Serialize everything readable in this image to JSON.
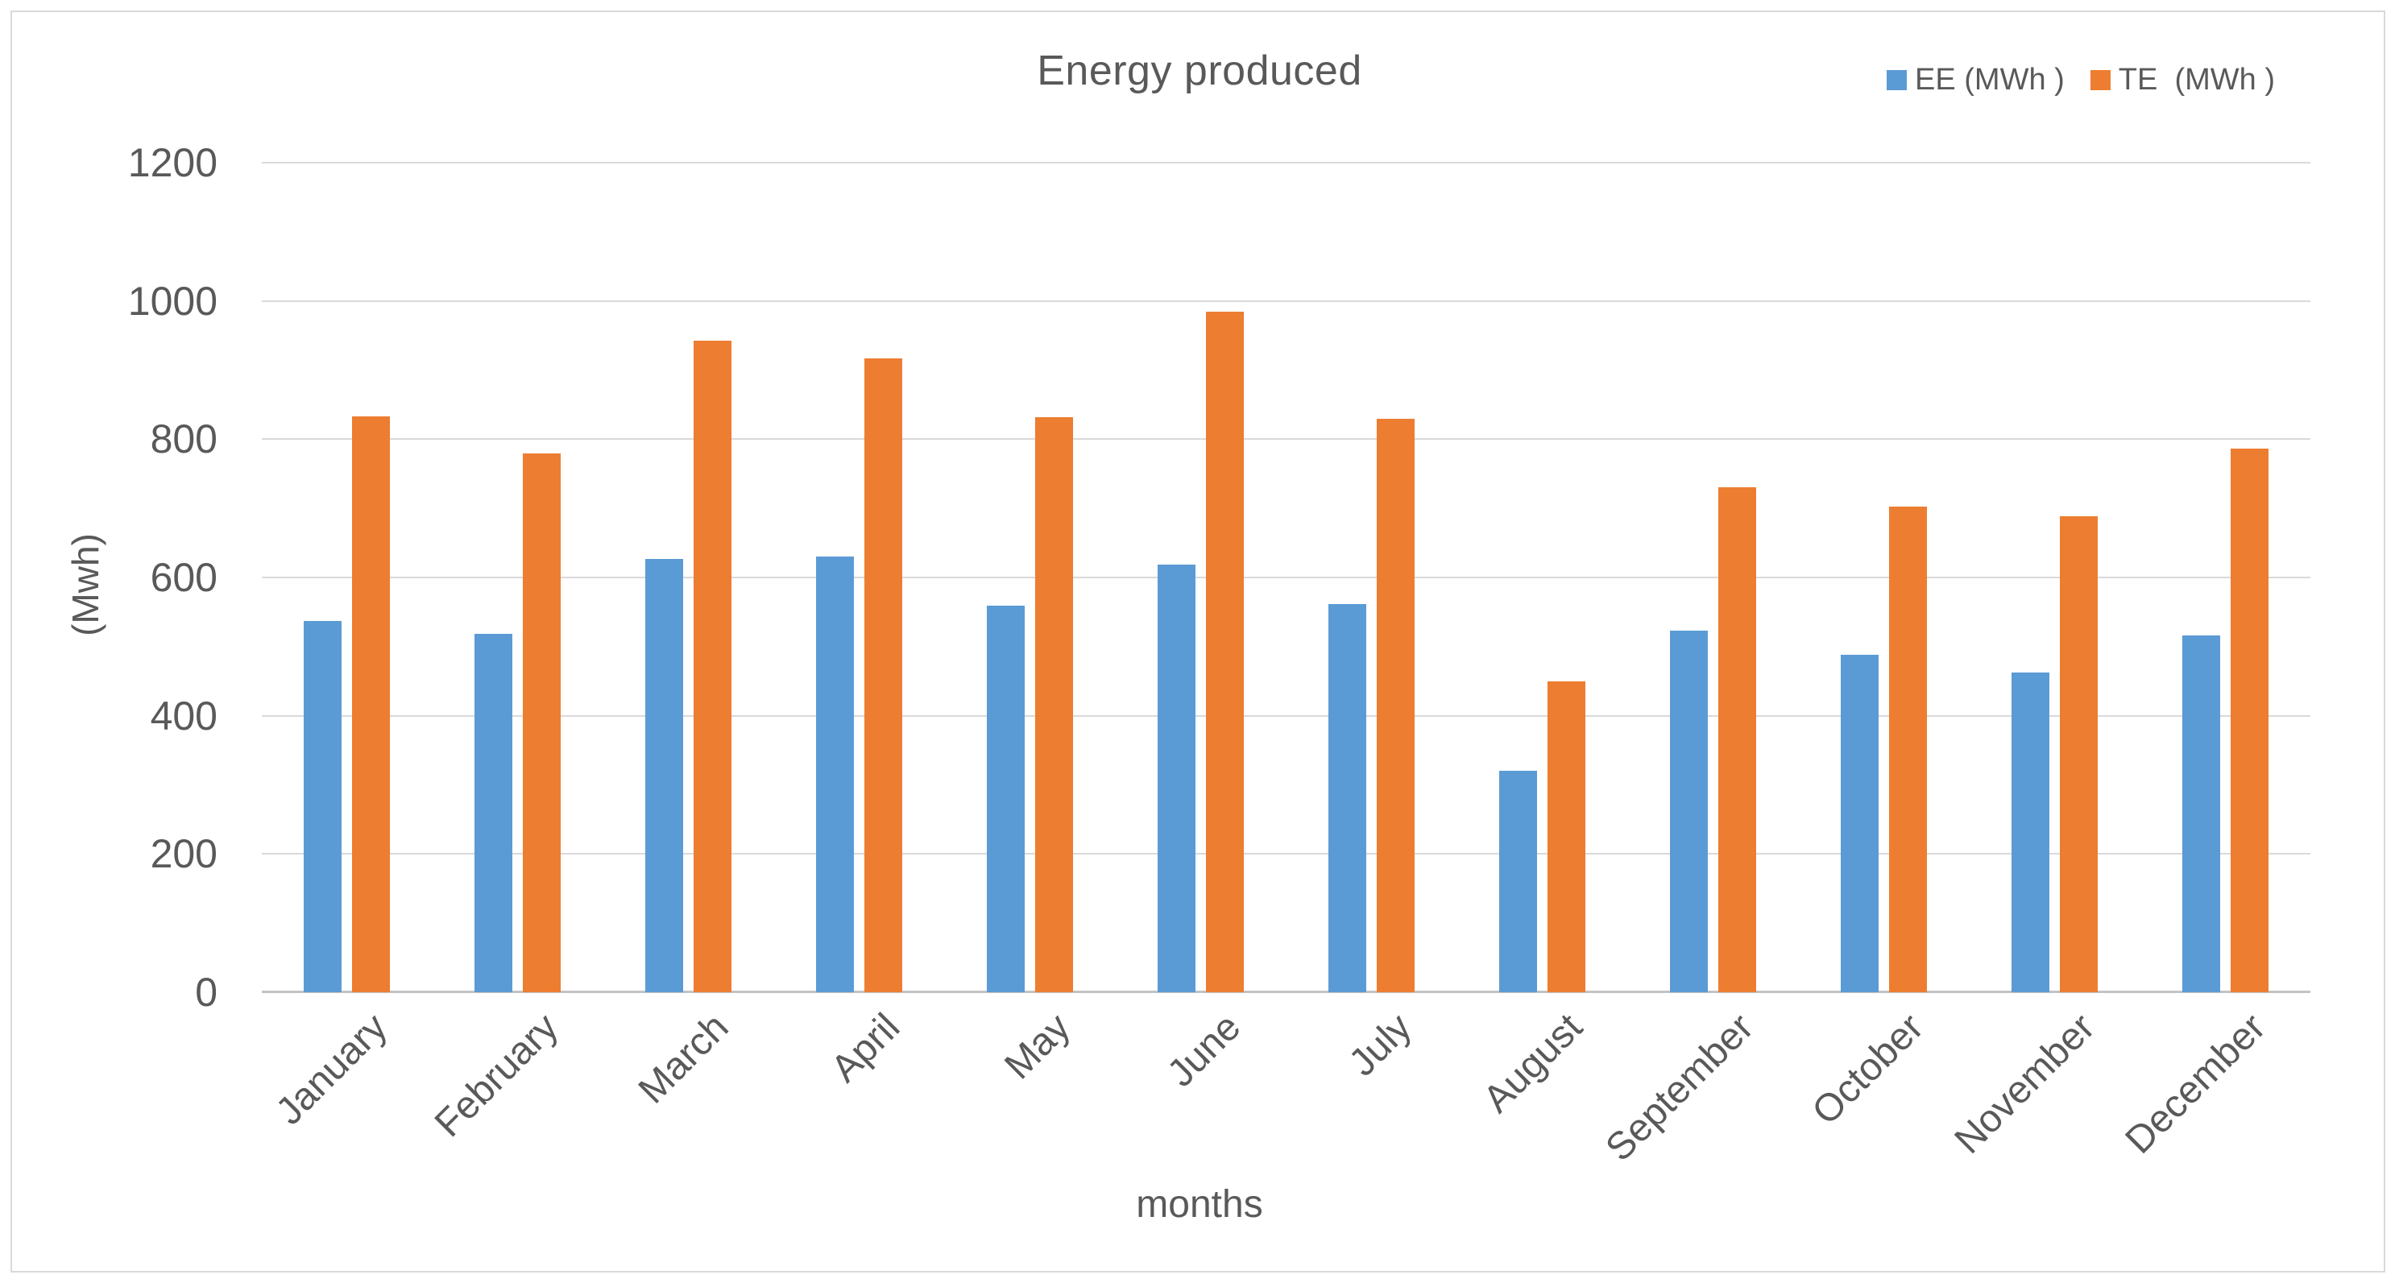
{
  "chart": {
    "title": "Energy produced",
    "x_axis_title": "months",
    "y_axis_title": "(Mwh)"
  },
  "chart_data": {
    "type": "bar",
    "title": "Energy produced",
    "xlabel": "months",
    "ylabel": "(Mwh)",
    "categories": [
      "January",
      "February",
      "March",
      "April",
      "May",
      "June",
      "July",
      "August",
      "September",
      "October",
      "November",
      "December"
    ],
    "series": [
      {
        "name": "EE (MWh )",
        "color": "#5B9BD5",
        "values": [
          537,
          518,
          627,
          630,
          559,
          619,
          562,
          320,
          523,
          488,
          463,
          516
        ]
      },
      {
        "name": "TE  (MWh )",
        "color": "#ED7D31",
        "values": [
          833,
          779,
          942,
          917,
          832,
          985,
          829,
          450,
          730,
          702,
          688,
          786
        ]
      }
    ],
    "ylim": [
      0,
      1200
    ],
    "yticks": [
      0,
      200,
      400,
      600,
      800,
      1000,
      1200
    ],
    "grid": true,
    "legend_position": "top-right",
    "colors": {
      "text": "#595959",
      "gridline": "#D9D9D9",
      "axis_line": "#C3C3C3",
      "border": "#D9D9D9",
      "background": "#FFFFFF"
    }
  }
}
